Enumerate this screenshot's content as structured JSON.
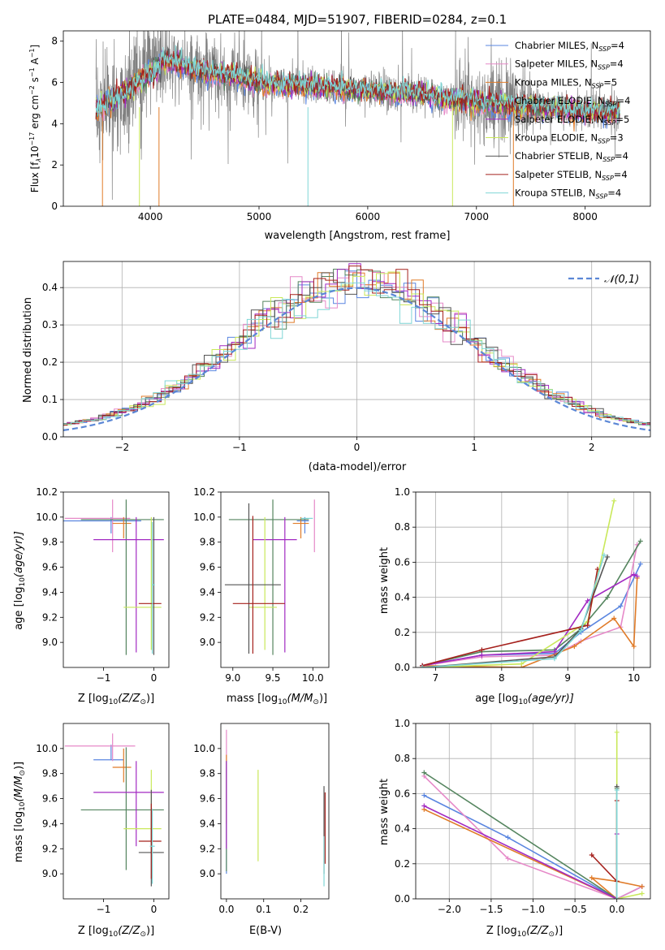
{
  "colors": [
    "#5a86e0",
    "#e689c8",
    "#e07b28",
    "#55855f",
    "#a22ac2",
    "#c9e85a",
    "#555555",
    "#a5201c",
    "#7fd6d6"
  ],
  "chart_data": [
    {
      "id": "spectrum",
      "type": "line",
      "title": "PLATE=0484, MJD=51907, FIBERID=0284, z=0.1",
      "xlabel": "wavelength [Angstrom, rest frame]",
      "ylabel": "Flux [f_λ 10⁻¹⁷ erg cm⁻² s⁻¹ Å⁻¹]",
      "ylabel_parts": {
        "a": "Flux [f",
        "b": "λ",
        "c": "10",
        "d": "−17",
        "e": " erg cm",
        "f": "−2",
        "g": " s",
        "h": "−1",
        "i": " A",
        "j": "−1",
        "k": "]"
      },
      "xlim": [
        3200,
        8600
      ],
      "ylim": [
        0,
        8.5
      ],
      "xticks": [
        4000,
        5000,
        6000,
        7000,
        8000
      ],
      "yticks": [
        0,
        2,
        4,
        6,
        8
      ],
      "legend_position": "upper-right",
      "series": [
        {
          "name": "Chabrier MILES",
          "nssp": "4"
        },
        {
          "name": "Salpeter MILES",
          "nssp": "4"
        },
        {
          "name": "Kroupa MILES",
          "nssp": "5"
        },
        {
          "name": "Chabrier ELODIE",
          "nssp": "4"
        },
        {
          "name": "Salpeter ELODIE",
          "nssp": "5"
        },
        {
          "name": "Kroupa ELODIE",
          "nssp": "3"
        },
        {
          "name": "Chabrier STELIB",
          "nssp": "4"
        },
        {
          "name": "Salpeter STELIB",
          "nssp": "4"
        },
        {
          "name": "Kroupa STELIB",
          "nssp": "4"
        }
      ],
      "continuum_x": [
        3500,
        3700,
        3900,
        4000,
        4200,
        4500,
        4800,
        5000,
        5500,
        6000,
        6500,
        7000,
        7500,
        8000,
        8300
      ],
      "continuum_y": [
        4.7,
        4.8,
        6.2,
        7.0,
        7.0,
        6.5,
        6.3,
        6.0,
        5.8,
        5.6,
        5.4,
        5.0,
        4.8,
        4.6,
        4.5
      ]
    },
    {
      "id": "residuals",
      "type": "histogram",
      "xlabel": "(data-model)/error",
      "ylabel": "Normed distribution",
      "xlim": [
        -2.5,
        2.5
      ],
      "ylim": [
        0,
        0.47
      ],
      "xticks": [
        -2,
        -1,
        0,
        1,
        2
      ],
      "yticks": [
        0.0,
        0.1,
        0.2,
        0.3,
        0.4
      ],
      "legend_label": "𝒩(0,1)",
      "legend_position": "upper-right"
    },
    {
      "id": "age_vs_Z",
      "type": "errorbar",
      "xlabel_parts": {
        "a": "Z [log",
        "b": "10",
        "c": "(Z/Z",
        "d": "⊙",
        "e": ")]"
      },
      "ylabel_parts": {
        "a": "age  [log",
        "b": "10",
        "c": "(age/yr)]"
      },
      "xlim": [
        -1.8,
        0.3
      ],
      "ylim": [
        8.8,
        10.2
      ],
      "xticks": [
        -1,
        0
      ],
      "yticks": [
        9.0,
        9.2,
        9.4,
        9.6,
        9.8,
        10.0,
        10.2
      ],
      "points": [
        {
          "x": -0.85,
          "xerr": [
            0.95,
            0.25
          ],
          "y": 9.97,
          "yerr": [
            0.1,
            0.03
          ]
        },
        {
          "x": -0.82,
          "xerr": [
            0.95,
            0.35
          ],
          "y": 9.99,
          "yerr": [
            0.25,
            0.15
          ]
        },
        {
          "x": -0.6,
          "xerr": [
            0.22,
            0.15
          ],
          "y": 9.95,
          "yerr": [
            0.12,
            0.05
          ]
        },
        {
          "x": -0.55,
          "xerr": [
            0.9,
            0.75
          ],
          "y": 9.98,
          "yerr": [
            1.08,
            0.16
          ]
        },
        {
          "x": -0.35,
          "xerr": [
            0.85,
            0.55
          ],
          "y": 9.82,
          "yerr": [
            0.9,
            0.18
          ]
        },
        {
          "x": 0.0,
          "xerr": [
            0.6,
            0.15
          ],
          "y": 9.28,
          "yerr": [
            0.34,
            0.72
          ]
        },
        {
          "x": -0.25,
          "xerr": [
            0.0,
            0.0
          ],
          "y": 9.46,
          "yerr": [
            0.0,
            0.0
          ]
        },
        {
          "x": -0.3,
          "xerr": [
            0.0,
            0.0
          ],
          "y": 9.31,
          "yerr": [
            0.0,
            0.0
          ]
        },
        {
          "x": 0.0,
          "xerr": [
            0.05,
            0.05
          ],
          "y": 9.0,
          "yerr": [
            0.1,
            1.0
          ]
        }
      ]
    },
    {
      "id": "age_vs_mass",
      "type": "errorbar",
      "xlabel_parts": {
        "a": "mass [log",
        "b": "10",
        "c": "(M/M",
        "d": "⊙",
        "e": ")]"
      },
      "xlim": [
        8.85,
        10.2
      ],
      "ylim": [
        8.8,
        10.2
      ],
      "xticks": [
        9.0,
        9.5,
        10.0
      ],
      "yticks": [
        9.0,
        9.2,
        9.4,
        9.6,
        9.8,
        10.0,
        10.2
      ]
    },
    {
      "id": "weight_vs_age",
      "type": "line",
      "xlabel_parts": {
        "a": "age  [log",
        "b": "10",
        "c": "(age/yr)]"
      },
      "ylabel": "mass weight",
      "xlim": [
        6.7,
        10.25
      ],
      "ylim": [
        0,
        1
      ],
      "xticks": [
        7,
        8,
        9,
        10
      ],
      "yticks": [
        0.0,
        0.2,
        0.4,
        0.6,
        0.8,
        1.0
      ],
      "series": [
        {
          "x": [
            6.8,
            7.7,
            8.8,
            9.2,
            9.8,
            10.1
          ],
          "y": [
            0.01,
            0.07,
            0.08,
            0.2,
            0.35,
            0.59
          ]
        },
        {
          "x": [
            6.8,
            7.7,
            8.8,
            9.2,
            9.8,
            10.05
          ],
          "y": [
            0.01,
            0.06,
            0.07,
            0.15,
            0.23,
            0.7
          ]
        },
        {
          "x": [
            6.8,
            8.3,
            9.1,
            9.7,
            10.0,
            10.05
          ],
          "y": [
            0.01,
            0.0,
            0.12,
            0.28,
            0.12,
            0.51
          ]
        },
        {
          "x": [
            6.8,
            7.7,
            8.8,
            9.2,
            9.6,
            10.1
          ],
          "y": [
            0.01,
            0.09,
            0.1,
            0.22,
            0.4,
            0.72
          ]
        },
        {
          "x": [
            6.8,
            7.7,
            8.8,
            9.3,
            10.0,
            10.05
          ],
          "y": [
            0.01,
            0.07,
            0.09,
            0.38,
            0.53,
            0.52
          ]
        },
        {
          "x": [
            6.8,
            8.3,
            9.3,
            9.7
          ],
          "y": [
            0.0,
            0.02,
            0.26,
            0.95
          ]
        },
        {
          "x": [
            6.8,
            8.8,
            9.2,
            9.6
          ],
          "y": [
            0.0,
            0.06,
            0.22,
            0.63
          ]
        },
        {
          "x": [
            6.8,
            7.7,
            9.3,
            9.45
          ],
          "y": [
            0.01,
            0.1,
            0.24,
            0.56
          ]
        },
        {
          "x": [
            6.8,
            8.8,
            9.2,
            9.55
          ],
          "y": [
            0.0,
            0.05,
            0.21,
            0.64
          ]
        }
      ]
    },
    {
      "id": "mass_vs_Z",
      "type": "errorbar",
      "xlabel_parts": {
        "a": "Z [log",
        "b": "10",
        "c": "(Z/Z",
        "d": "⊙",
        "e": ")]"
      },
      "ylabel_parts": {
        "a": "mass [log",
        "b": "10",
        "c": "(M/M",
        "d": "⊙",
        "e": ")]"
      },
      "xlim": [
        -1.8,
        0.3
      ],
      "ylim": [
        8.8,
        10.2
      ],
      "xticks": [
        -1,
        0
      ],
      "yticks": [
        9.0,
        9.2,
        9.4,
        9.6,
        9.8,
        10.0
      ]
    },
    {
      "id": "mass_vs_EBV",
      "type": "errorbar",
      "xlabel": "E(B-V)",
      "xlim": [
        -0.015,
        0.275
      ],
      "ylim": [
        8.8,
        10.2
      ],
      "xticks": [
        0.0,
        0.1,
        0.2
      ],
      "yticks": [
        9.0,
        9.2,
        9.4,
        9.6,
        9.8,
        10.0
      ]
    },
    {
      "id": "weight_vs_Z",
      "type": "line",
      "xlabel_parts": {
        "a": "Z [log",
        "b": "10",
        "c": "(Z/Z",
        "d": "⊙",
        "e": ")]"
      },
      "ylabel": "mass weight",
      "xlim": [
        -2.4,
        0.4
      ],
      "ylim": [
        0,
        1
      ],
      "xticks": [
        -2.0,
        -1.5,
        -1.0,
        -0.5,
        0.0
      ],
      "yticks": [
        0.0,
        0.2,
        0.4,
        0.6,
        0.8,
        1.0
      ],
      "series": [
        {
          "x": [
            -2.3,
            -1.3,
            0.0,
            0.3
          ],
          "y": [
            0.59,
            0.35,
            0.0,
            0.07
          ]
        },
        {
          "x": [
            -2.3,
            -1.3,
            0.0,
            0.3
          ],
          "y": [
            0.7,
            0.23,
            0.0,
            0.07
          ]
        },
        {
          "x": [
            -2.3,
            0.0,
            -0.3,
            0.0,
            0.3
          ],
          "y": [
            0.51,
            0.0,
            0.12,
            0.1,
            0.07
          ]
        },
        {
          "x": [
            -2.3,
            0.0,
            0.0
          ],
          "y": [
            0.72,
            0.0,
            0.63
          ]
        },
        {
          "x": [
            -2.3,
            0.0,
            0.0
          ],
          "y": [
            0.53,
            0.0,
            0.37
          ]
        },
        {
          "x": [
            0.0,
            0.0,
            0.3
          ],
          "y": [
            0.95,
            0.0,
            0.03
          ]
        },
        {
          "x": [
            0.0,
            0.0
          ],
          "y": [
            0.0,
            0.64
          ]
        },
        {
          "x": [
            -0.3,
            0.0,
            0.0
          ],
          "y": [
            0.25,
            0.1,
            0.56
          ]
        },
        {
          "x": [
            0.0,
            0.0
          ],
          "y": [
            0.0,
            0.62
          ]
        }
      ]
    }
  ]
}
